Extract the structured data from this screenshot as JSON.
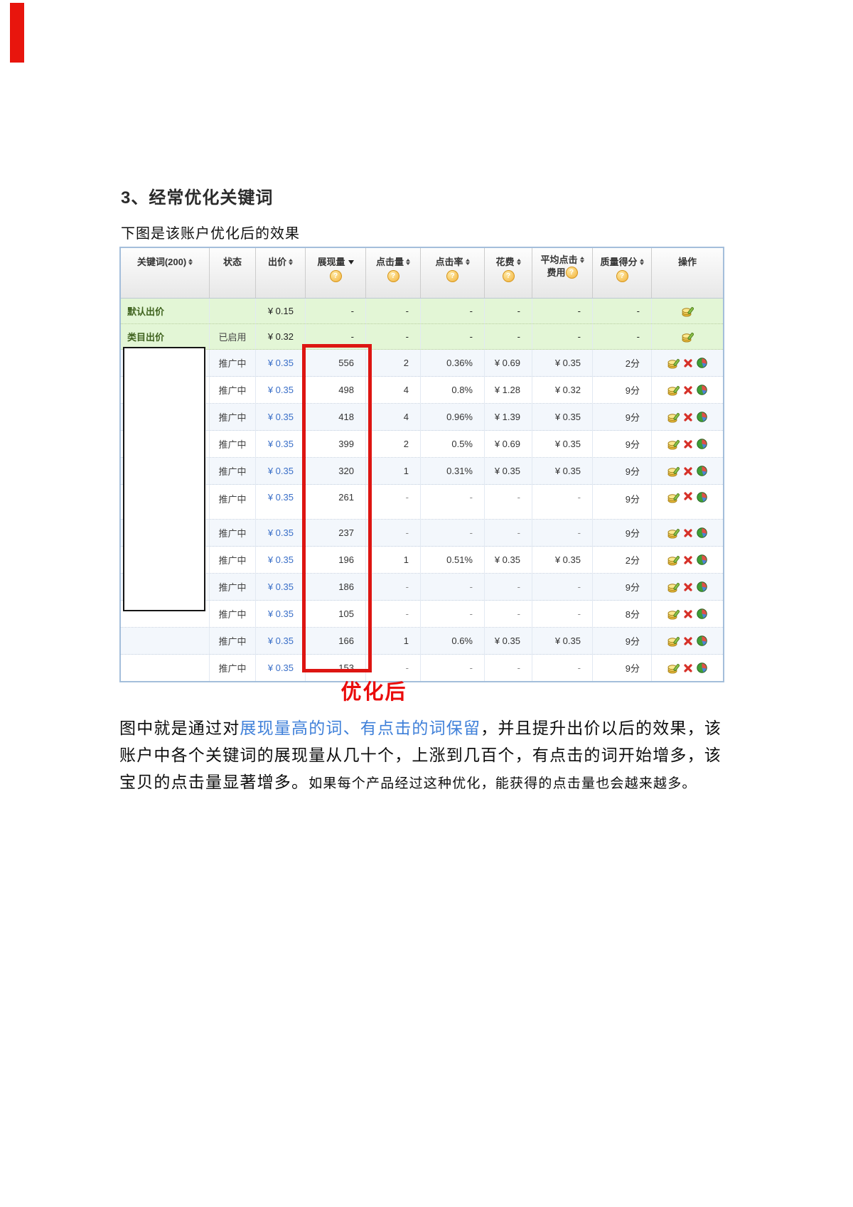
{
  "page": {
    "heading": "3、经常优化关键词",
    "subheading": "下图是该账户优化后的效果",
    "caption": "优化后"
  },
  "table": {
    "columns": [
      {
        "key": "keyword",
        "label": "关键词(200)",
        "sort": "both",
        "help": false
      },
      {
        "key": "status",
        "label": "状态",
        "sort": "none",
        "help": false
      },
      {
        "key": "bid",
        "label": "出价",
        "sort": "both",
        "help": false
      },
      {
        "key": "impressions",
        "label": "展现量",
        "sort": "desc",
        "help": true
      },
      {
        "key": "clicks",
        "label": "点击量",
        "sort": "both",
        "help": true
      },
      {
        "key": "ctr",
        "label": "点击率",
        "sort": "both",
        "help": true
      },
      {
        "key": "cost",
        "label": "花费",
        "sort": "both",
        "help": true
      },
      {
        "key": "avg-click-cost",
        "label": "平均点击费用",
        "two_line": true,
        "line1": "平均点击",
        "line2": "费用",
        "sort": "both",
        "help": true
      },
      {
        "key": "quality-score",
        "label": "质量得分",
        "sort": "both",
        "help": true
      },
      {
        "key": "actions",
        "label": "操作",
        "sort": "none",
        "help": false
      }
    ],
    "help_glyph": "?",
    "summary_rows": [
      {
        "name": "默认出价",
        "status": "",
        "bid": "¥ 0.15",
        "impressions": "-",
        "clicks": "-",
        "ctr": "-",
        "cost": "-",
        "avg_click_cost": "-",
        "quality_score": "-"
      },
      {
        "name": "类目出价",
        "status": "已启用",
        "bid": "¥ 0.32",
        "impressions": "-",
        "clicks": "-",
        "ctr": "-",
        "cost": "-",
        "avg_click_cost": "-",
        "quality_score": "-"
      }
    ],
    "keyword_rows": [
      {
        "status": "推广中",
        "bid": "¥ 0.35",
        "impressions": "556",
        "clicks": "2",
        "ctr": "0.36%",
        "cost": "¥ 0.69",
        "avg_click_cost": "¥ 0.35",
        "quality_score": "2分"
      },
      {
        "status": "推广中",
        "bid": "¥ 0.35",
        "impressions": "498",
        "clicks": "4",
        "ctr": "0.8%",
        "cost": "¥ 1.28",
        "avg_click_cost": "¥ 0.32",
        "quality_score": "9分"
      },
      {
        "status": "推广中",
        "bid": "¥ 0.35",
        "impressions": "418",
        "clicks": "4",
        "ctr": "0.96%",
        "cost": "¥ 1.39",
        "avg_click_cost": "¥ 0.35",
        "quality_score": "9分"
      },
      {
        "status": "推广中",
        "bid": "¥ 0.35",
        "impressions": "399",
        "clicks": "2",
        "ctr": "0.5%",
        "cost": "¥ 0.69",
        "avg_click_cost": "¥ 0.35",
        "quality_score": "9分"
      },
      {
        "status": "推广中",
        "bid": "¥ 0.35",
        "impressions": "320",
        "clicks": "1",
        "ctr": "0.31%",
        "cost": "¥ 0.35",
        "avg_click_cost": "¥ 0.35",
        "quality_score": "9分"
      },
      {
        "status": "推广中",
        "bid": "¥ 0.35",
        "impressions": "261",
        "clicks": "-",
        "ctr": "-",
        "cost": "-",
        "avg_click_cost": "-",
        "quality_score": "9分",
        "tall": true
      },
      {
        "status": "推广中",
        "bid": "¥ 0.35",
        "impressions": "237",
        "clicks": "-",
        "ctr": "-",
        "cost": "-",
        "avg_click_cost": "-",
        "quality_score": "9分"
      },
      {
        "status": "推广中",
        "bid": "¥ 0.35",
        "impressions": "196",
        "clicks": "1",
        "ctr": "0.51%",
        "cost": "¥ 0.35",
        "avg_click_cost": "¥ 0.35",
        "quality_score": "2分"
      },
      {
        "status": "推广中",
        "bid": "¥ 0.35",
        "impressions": "186",
        "clicks": "-",
        "ctr": "-",
        "cost": "-",
        "avg_click_cost": "-",
        "quality_score": "9分"
      },
      {
        "status": "推广中",
        "bid": "¥ 0.35",
        "impressions": "105",
        "clicks": "-",
        "ctr": "-",
        "cost": "-",
        "avg_click_cost": "-",
        "quality_score": "8分"
      },
      {
        "status": "推广中",
        "bid": "¥ 0.35",
        "impressions": "166",
        "clicks": "1",
        "ctr": "0.6%",
        "cost": "¥ 0.35",
        "avg_click_cost": "¥ 0.35",
        "quality_score": "9分"
      },
      {
        "status": "推广中",
        "bid": "¥ 0.35",
        "impressions": "153",
        "clicks": "-",
        "ctr": "-",
        "cost": "-",
        "avg_click_cost": "-",
        "quality_score": "9分"
      }
    ],
    "icons": {
      "edit": "edit-icon",
      "delete": "delete-icon",
      "report": "pie-chart-icon",
      "sort": "sort-arrows-icon",
      "sort_desc": "sort-desc-icon",
      "help": "help-icon"
    }
  },
  "paragraph": {
    "lines": [
      {
        "segments": [
          {
            "text": "图中就是通过对",
            "style": "normal"
          },
          {
            "text": "展现量高的词、有点击的词保留",
            "style": "blue"
          },
          {
            "text": "，并且提升出价以后的效果，该",
            "style": "normal"
          }
        ]
      },
      {
        "segments": [
          {
            "text": "账户中各个关键词的展现量从几十个，上涨到几百个，有点击的词开始增多，该",
            "style": "normal"
          }
        ]
      },
      {
        "segments": [
          {
            "text": "宝贝的点击量显著增多。",
            "style": "normal"
          },
          {
            "text": "如果每个产品经过这种优化，能获得的点击量也会越来越多。",
            "style": "small"
          }
        ]
      }
    ]
  },
  "colors": {
    "annotation_red": "#dd1512",
    "highlight_blue": "#3f80d9",
    "bid_blue": "#3a6fc8",
    "green_row_bg": "#e3f6d6",
    "caption_red": "#ea0b0b"
  }
}
